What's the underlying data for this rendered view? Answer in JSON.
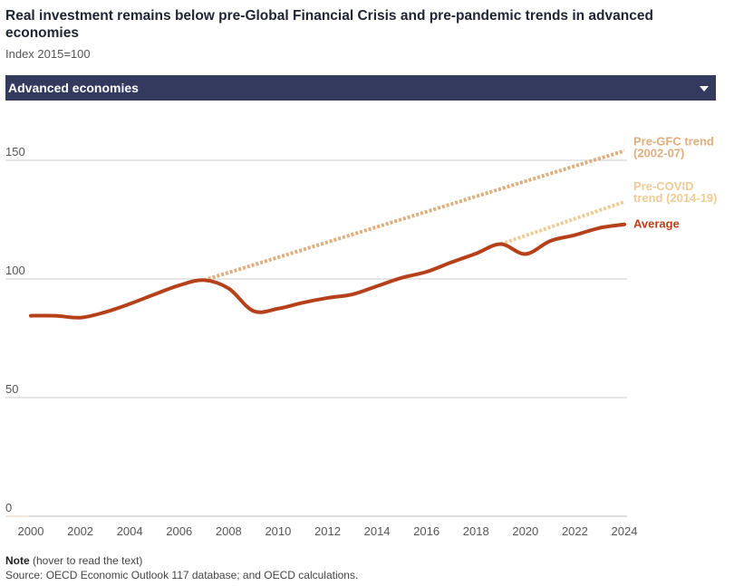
{
  "title": "Real investment remains below pre-Global Financial Crisis and pre-pandemic trends in advanced economies",
  "subtitle": "Index 2015=100",
  "dropdown": {
    "selected": "Advanced economies"
  },
  "note": {
    "label": "Note",
    "hint": "(hover to read the text)"
  },
  "source": "Source: OECD Economic Outlook 117 database; and OECD calculations.",
  "colors": {
    "average": "#b5401a",
    "gfc_trend": "#e0ae7c",
    "covid_trend": "#efcb97",
    "header": "#343a5e",
    "grid": "#cccccc"
  },
  "chart_data": {
    "type": "line",
    "title": "Real investment remains below pre-Global Financial Crisis and pre-pandemic trends in advanced economies",
    "ylabel": "Index 2015=100",
    "xlabel": "",
    "xlim": [
      2000,
      2024
    ],
    "ylim": [
      0,
      150
    ],
    "yticks": [
      0,
      50,
      100,
      150
    ],
    "xticks": [
      2000,
      2002,
      2004,
      2006,
      2008,
      2010,
      2012,
      2014,
      2016,
      2018,
      2020,
      2022,
      2024
    ],
    "series": [
      {
        "name": "Average",
        "style": "solid",
        "x": [
          2000,
          2001,
          2002,
          2003,
          2004,
          2005,
          2006,
          2007,
          2008,
          2009,
          2010,
          2011,
          2012,
          2013,
          2014,
          2015,
          2016,
          2017,
          2018,
          2019,
          2020,
          2021,
          2022,
          2023,
          2024
        ],
        "values": [
          84.5,
          84.5,
          83.7,
          86,
          89.5,
          93.5,
          97.3,
          99.5,
          96,
          86.5,
          87.5,
          90,
          92,
          93.5,
          97,
          100.5,
          103,
          107,
          110.7,
          114.7,
          110.5,
          116,
          118.5,
          121.5,
          123
        ]
      },
      {
        "name": "Pre-GFC trend (2002-07)",
        "style": "dotted",
        "x": [
          2007,
          2024
        ],
        "values": [
          99.5,
          154
        ]
      },
      {
        "name": "Pre-COVID trend (2014-19)",
        "style": "dotted",
        "x": [
          2019,
          2024
        ],
        "values": [
          114.7,
          132.5
        ]
      }
    ],
    "labels": [
      {
        "series": "Pre-GFC trend (2002-07)",
        "lines": [
          "Pre-GFC trend",
          "(2002-07)"
        ]
      },
      {
        "series": "Pre-COVID trend (2014-19)",
        "lines": [
          "Pre-COVID",
          "trend (2014-19)"
        ]
      },
      {
        "series": "Average",
        "lines": [
          "Average"
        ]
      }
    ]
  }
}
